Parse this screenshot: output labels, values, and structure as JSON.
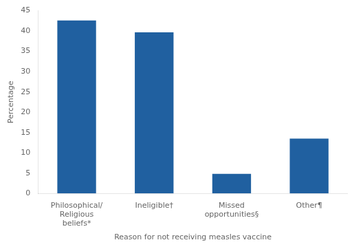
{
  "chart_data": {
    "type": "bar",
    "categories": [
      "Philosophical/\nReligious\nbeliefs*",
      "Ineligible†",
      "Missed\nopportunities§",
      "Other¶"
    ],
    "values": [
      42.6,
      39.7,
      4.8,
      13.5
    ],
    "color": "#2060a0",
    "xlabel": "Reason for not receiving measles vaccine",
    "ylabel": "Percentage",
    "ylim": [
      0,
      45
    ],
    "yticks": [
      0,
      5,
      10,
      15,
      20,
      25,
      30,
      35,
      40,
      45
    ],
    "grid": false
  }
}
